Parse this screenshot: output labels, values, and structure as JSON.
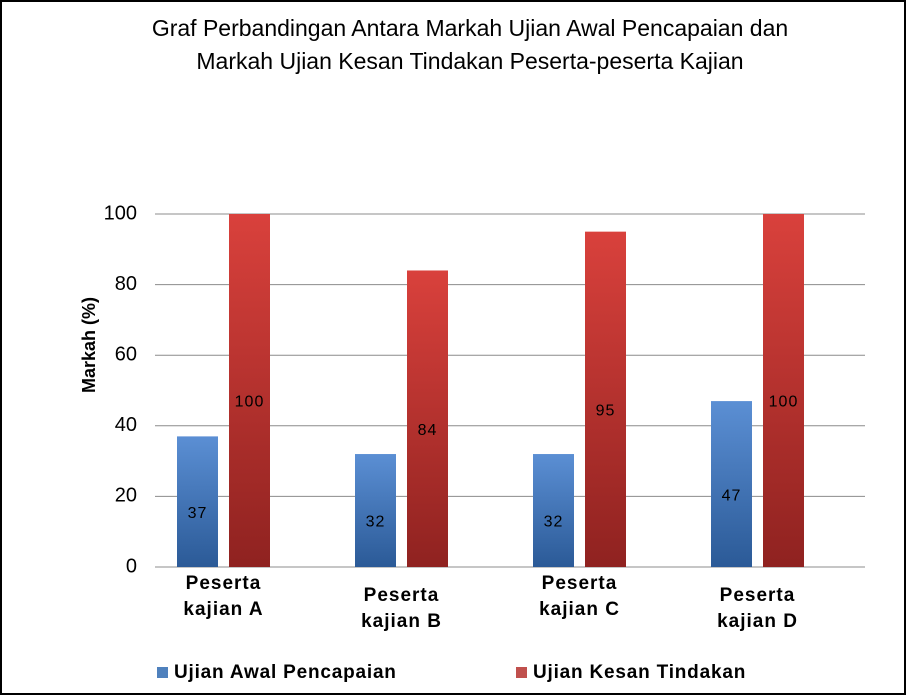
{
  "chart_data": {
    "type": "bar",
    "title": "Graf Perbandingan Antara Markah Ujian Awal Pencapaian dan Markah Ujian Kesan Tindakan Peserta-peserta Kajian",
    "y_label": "Markah (%)",
    "categories": [
      "Peserta kajian A",
      "Peserta kajian B",
      "Peserta kajian C",
      "Peserta kajian D"
    ],
    "series": [
      {
        "name": "Ujian Awal Pencapaian",
        "color": "#4f81bd",
        "values": [
          37,
          32,
          32,
          47
        ]
      },
      {
        "name": "Ujian Kesan Tindakan",
        "color": "#c0504d",
        "values": [
          100,
          84,
          95,
          100
        ]
      }
    ],
    "ylim": [
      0,
      100
    ],
    "yticks": [
      0,
      20,
      40,
      60,
      80,
      100
    ],
    "grid": true,
    "legend": "bottom"
  }
}
